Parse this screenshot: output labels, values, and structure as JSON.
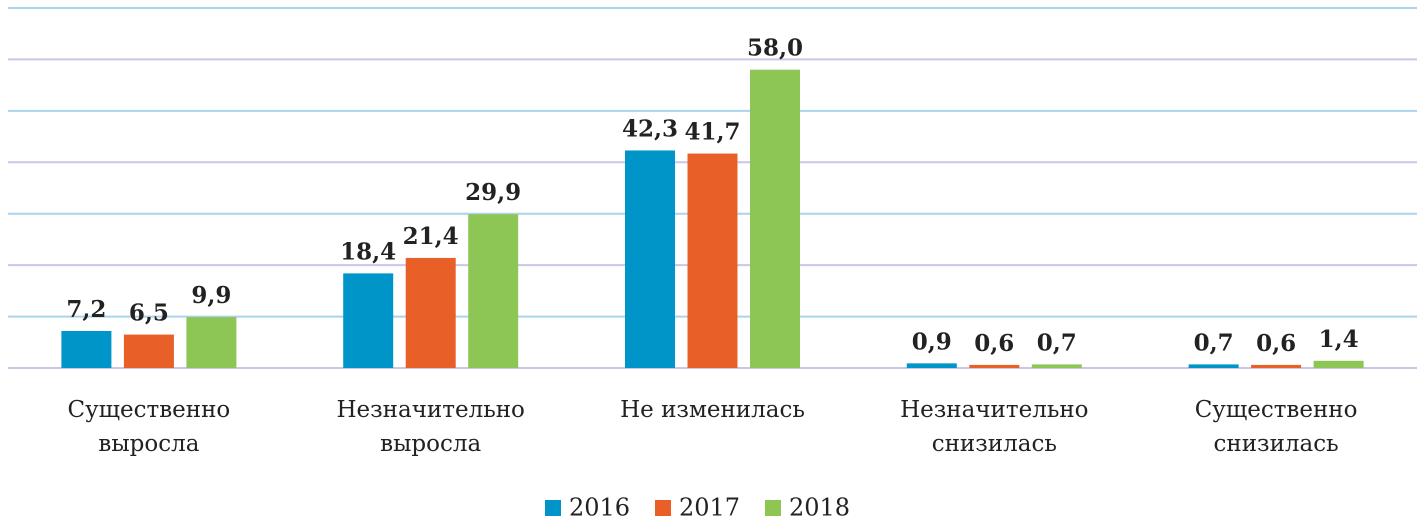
{
  "chart_data": {
    "type": "bar",
    "categories": [
      "Существенно выросла",
      "Незначительно выросла",
      "Не изменилась",
      "Незначительно снизилась",
      "Существенно снизилась"
    ],
    "series": [
      {
        "name": "2016",
        "color": "#0095c8",
        "values": [
          7.2,
          18.4,
          42.3,
          0.9,
          0.7
        ],
        "value_labels": [
          "7,2",
          "18,4",
          "42,3",
          "0,9",
          "0,7"
        ]
      },
      {
        "name": "2017",
        "color": "#e85f28",
        "values": [
          6.5,
          21.4,
          41.7,
          0.6,
          0.6
        ],
        "value_labels": [
          "6,5",
          "21,4",
          "41,7",
          "0,6",
          "0,6"
        ]
      },
      {
        "name": "2018",
        "color": "#8dc654",
        "values": [
          9.9,
          29.9,
          58.0,
          0.7,
          1.4
        ],
        "value_labels": [
          "9,9",
          "29,9",
          "58,0",
          "0,7",
          "1,4"
        ]
      }
    ],
    "ylim": [
      0,
      70
    ],
    "yticks": [
      0,
      10,
      20,
      30,
      40,
      50,
      60,
      70
    ],
    "grid": true,
    "legend": "bottom"
  }
}
